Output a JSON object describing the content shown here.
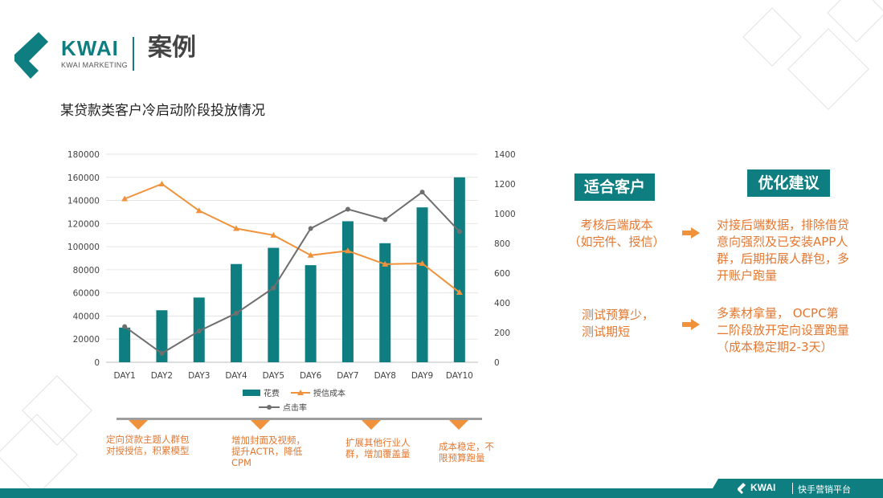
{
  "header": {
    "logo_text": "KWAI",
    "logo_sub": "KWAI MARKETING",
    "title": "案例"
  },
  "subtitle": "某贷款类客户冷启动阶段投放情况",
  "chart_data": {
    "type": "bar",
    "categories": [
      "DAY1",
      "DAY2",
      "DAY3",
      "DAY4",
      "DAY5",
      "DAY6",
      "DAY7",
      "DAY8",
      "DAY9",
      "DAY10"
    ],
    "series": [
      {
        "name": "花费",
        "type": "bar",
        "axis": "left",
        "color": "#0f7e80",
        "values": [
          30000,
          45000,
          56000,
          85000,
          99000,
          84000,
          122000,
          103000,
          134000,
          160000
        ]
      },
      {
        "name": "授信成本",
        "type": "line",
        "axis": "right",
        "color": "#f0923b",
        "values": [
          1100,
          1200,
          1020,
          900,
          855,
          720,
          750,
          660,
          665,
          470
        ]
      },
      {
        "name": "点击率",
        "type": "line",
        "axis": "right",
        "color": "#6f6f6f",
        "values": [
          240,
          60,
          210,
          330,
          500,
          900,
          1030,
          960,
          1145,
          880
        ]
      }
    ],
    "left_ticks": [
      "0",
      "20000",
      "40000",
      "60000",
      "80000",
      "100000",
      "120000",
      "140000",
      "160000",
      "180000"
    ],
    "right_ticks": [
      "0",
      "200",
      "400",
      "600",
      "800",
      "1000",
      "1200",
      "1400"
    ],
    "ylim_left": [
      0,
      180000
    ],
    "ylim_right": [
      0,
      1400
    ],
    "legend": {
      "position": "bottom"
    }
  },
  "panels": {
    "suitable": {
      "title": "适合客户",
      "items": [
        "考核后端成本\n（如完件、授信）",
        "测试预算少，\n测试期短"
      ]
    },
    "advice": {
      "title": "优化建议",
      "items": [
        "对接后端数据，排除借贷\n意向强烈及已安装APP人\n群，后期拓展人群包，多\n开账户跑量",
        "多素材拿量， OCPC第\n二阶段放开定向设置跑量\n（成本稳定期2-3天）"
      ]
    }
  },
  "timeline_notes": [
    "定向贷款主题人群包\n对授授信，积累模型",
    "增加封面及视频，\n提升ACTR，降低\nCPM",
    "扩展其他行业人\n群，增加覆盖量",
    "成本稳定，不\n限预算跑量"
  ],
  "footer": {
    "logo": "KWAI",
    "text": "快手营销平台"
  },
  "colors": {
    "brand": "#0f7e80",
    "accent": "#e4772f",
    "line_orange": "#f0923b",
    "line_gray": "#6f6f6f"
  }
}
